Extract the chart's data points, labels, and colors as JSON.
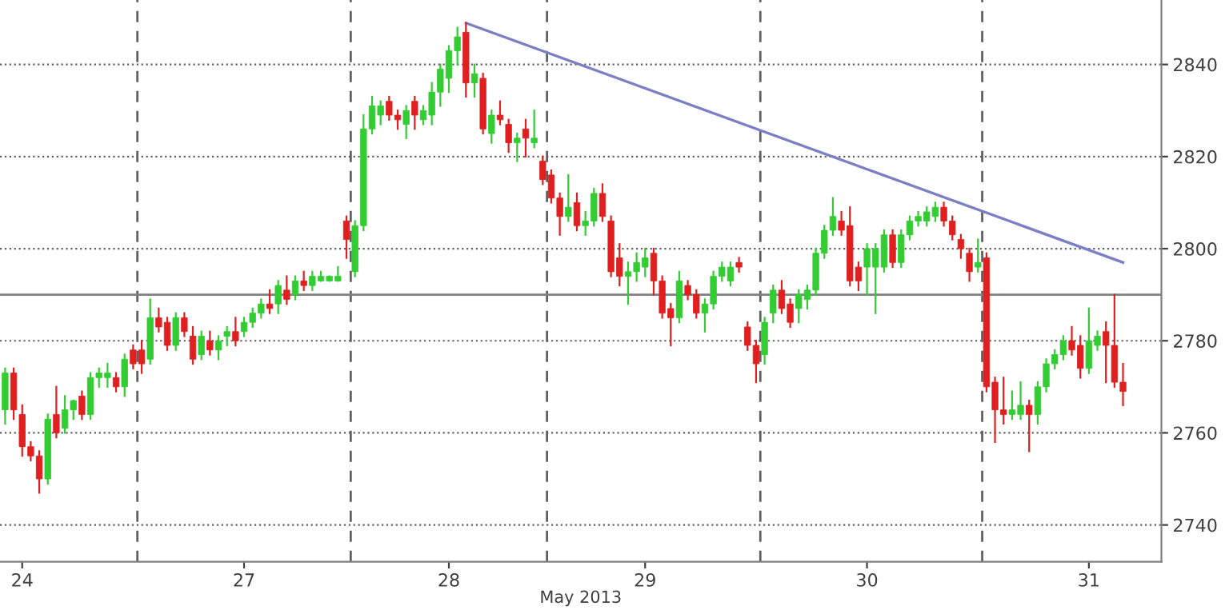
{
  "chart_data": {
    "type": "candlestick",
    "xlabel": "May 2013",
    "categories": [
      null,
      null,
      "24",
      null,
      null,
      null,
      null,
      null,
      null,
      null,
      null,
      null,
      null,
      null,
      null,
      null,
      null,
      null,
      null,
      null,
      null,
      null,
      null,
      null,
      null,
      null,
      null,
      null,
      "27",
      null,
      null,
      null,
      null,
      null,
      null,
      null,
      null,
      null,
      null,
      null,
      null,
      null,
      null,
      null,
      null,
      null,
      null,
      null,
      null,
      null,
      null,
      null,
      "28",
      null,
      null,
      null,
      null,
      null,
      null,
      null,
      null,
      null,
      null,
      null,
      null,
      null,
      null,
      null,
      null,
      null,
      null,
      null,
      null,
      null,
      null,
      "29",
      null,
      null,
      null,
      null,
      null,
      null,
      null,
      null,
      null,
      null,
      null,
      null,
      null,
      null,
      null,
      null,
      null,
      null,
      null,
      null,
      null,
      null,
      null,
      null,
      null,
      "30",
      null,
      null,
      null,
      null,
      null,
      null,
      null,
      null,
      null,
      null,
      null,
      null,
      null,
      null,
      null,
      null,
      null,
      null,
      null,
      null,
      null,
      null,
      null,
      null,
      null,
      "31",
      null,
      null,
      null,
      null
    ],
    "ylim": [
      2732,
      2854
    ],
    "yticks": [
      2740,
      2760,
      2780,
      2800,
      2820,
      2840
    ],
    "grid": "y",
    "ref_lines": [
      {
        "axis": "y",
        "value": 2790,
        "color": "#808080",
        "line_style": "solid"
      }
    ],
    "series": [
      {
        "type": "line",
        "color": "#7b7fc4",
        "values": [
          null,
          null,
          null,
          null,
          null,
          null,
          null,
          null,
          null,
          null,
          null,
          null,
          null,
          null,
          null,
          null,
          null,
          null,
          null,
          null,
          null,
          null,
          null,
          null,
          null,
          null,
          null,
          null,
          null,
          null,
          null,
          null,
          null,
          null,
          null,
          null,
          null,
          null,
          null,
          null,
          null,
          null,
          null,
          null,
          null,
          null,
          null,
          null,
          null,
          null,
          null,
          null,
          null,
          null,
          2849,
          null,
          null,
          null,
          null,
          null,
          null,
          null,
          null,
          null,
          null,
          null,
          null,
          null,
          null,
          null,
          null,
          null,
          null,
          null,
          null,
          null,
          null,
          null,
          null,
          null,
          null,
          null,
          null,
          null,
          null,
          null,
          null,
          null,
          null,
          null,
          null,
          null,
          null,
          null,
          null,
          null,
          null,
          null,
          null,
          null,
          null,
          null,
          null,
          null,
          null,
          null,
          null,
          null,
          null,
          null,
          null,
          null,
          null,
          null,
          null,
          null,
          null,
          null,
          null,
          null,
          null,
          null,
          null,
          null,
          null,
          null,
          null,
          null,
          null,
          null,
          null,
          2797
        ]
      },
      {
        "ohlc": [
          [
            2765,
            2774,
            2762,
            2773
          ],
          [
            2773,
            2774,
            2763,
            2765
          ],
          [
            2764,
            2766,
            2755,
            2757
          ],
          [
            2757,
            2758,
            2754,
            2755
          ],
          [
            2755,
            2756,
            2747,
            2750
          ],
          [
            2750,
            2764,
            2749,
            2763
          ],
          [
            2764,
            2770,
            2759,
            2760
          ],
          [
            2761,
            2768,
            2760,
            2765
          ],
          [
            2765,
            2767,
            2763,
            2767
          ],
          [
            2768,
            2769,
            2763,
            2764
          ],
          [
            2764,
            2773,
            2763,
            2772
          ],
          [
            2772,
            2774,
            2770,
            2773
          ],
          [
            2772,
            2775,
            2770,
            2773
          ],
          [
            2772,
            2773,
            2769,
            2770
          ],
          [
            2770,
            2777,
            2768,
            2776
          ],
          [
            2778,
            2779,
            2774,
            2775
          ],
          [
            2778,
            2780,
            2773,
            2775
          ],
          [
            2776,
            2789,
            2775,
            2785
          ],
          [
            2785,
            2787,
            2782,
            2783
          ],
          [
            2784,
            2785,
            2778,
            2779
          ],
          [
            2779,
            2786,
            2778,
            2785
          ],
          [
            2785,
            2786,
            2781,
            2782
          ],
          [
            2781,
            2783,
            2775,
            2776
          ],
          [
            2777,
            2782,
            2776,
            2781
          ],
          [
            2780,
            2782,
            2777,
            2778
          ],
          [
            2778,
            2781,
            2776,
            2780
          ],
          [
            2781,
            2783,
            2779,
            2782
          ],
          [
            2782,
            2785,
            2779,
            2780
          ],
          [
            2782,
            2785,
            2781,
            2784
          ],
          [
            2784,
            2787,
            2783,
            2786
          ],
          [
            2786,
            2789,
            2785,
            2788
          ],
          [
            2788,
            2791,
            2786,
            2787
          ],
          [
            2788,
            2793,
            2786,
            2792
          ],
          [
            2791,
            2794,
            2788,
            2789
          ],
          [
            2790,
            2794,
            2789,
            2793
          ],
          [
            2793,
            2795,
            2791,
            2792
          ],
          [
            2792,
            2795,
            2791,
            2794
          ],
          [
            2793,
            2795,
            2793,
            2794
          ],
          [
            2793,
            2794,
            2793,
            2794
          ],
          [
            2793,
            2796,
            2793,
            2794
          ],
          [
            2806,
            2807,
            2798,
            2802
          ],
          [
            2795,
            2806,
            2794,
            2805
          ],
          [
            2805,
            2829,
            2804,
            2826
          ],
          [
            2826,
            2833,
            2825,
            2831
          ],
          [
            2829,
            2832,
            2827,
            2831
          ],
          [
            2832,
            2833,
            2828,
            2829
          ],
          [
            2829,
            2830,
            2826,
            2828
          ],
          [
            2827,
            2831,
            2824,
            2830
          ],
          [
            2832,
            2833,
            2826,
            2829
          ],
          [
            2828,
            2831,
            2827,
            2830
          ],
          [
            2829,
            2836,
            2827,
            2834
          ],
          [
            2834,
            2840,
            2831,
            2839
          ],
          [
            2837,
            2844,
            2834,
            2843
          ],
          [
            2843,
            2848,
            2840,
            2846
          ],
          [
            2847,
            2849,
            2833,
            2836
          ],
          [
            2836,
            2840,
            2833,
            2838
          ],
          [
            2837,
            2838,
            2825,
            2826
          ],
          [
            2825,
            2830,
            2823,
            2829
          ],
          [
            2829,
            2832,
            2827,
            2828
          ],
          [
            2827,
            2828,
            2821,
            2823
          ],
          [
            2823,
            2825,
            2819,
            2824
          ],
          [
            2826,
            2828,
            2820,
            2824
          ],
          [
            2823,
            2830,
            2822,
            2824
          ],
          [
            2819,
            2820,
            2814,
            2815
          ],
          [
            2816,
            2817,
            2810,
            2811
          ],
          [
            2811,
            2812,
            2803,
            2807
          ],
          [
            2807,
            2816,
            2806,
            2809
          ],
          [
            2810,
            2812,
            2804,
            2805
          ],
          [
            2805,
            2808,
            2803,
            2806
          ],
          [
            2806,
            2813,
            2805,
            2812
          ],
          [
            2812,
            2814,
            2806,
            2807
          ],
          [
            2806,
            2807,
            2794,
            2795
          ],
          [
            2798,
            2801,
            2792,
            2794
          ],
          [
            2794,
            2797,
            2788,
            2795
          ],
          [
            2795,
            2799,
            2793,
            2797
          ],
          [
            2796,
            2800,
            2794,
            2798
          ],
          [
            2799,
            2800,
            2790,
            2793
          ],
          [
            2793,
            2794,
            2785,
            2786
          ],
          [
            2787,
            2788,
            2779,
            2785
          ],
          [
            2785,
            2795,
            2784,
            2793
          ],
          [
            2792,
            2793,
            2789,
            2790
          ],
          [
            2790,
            2791,
            2785,
            2786
          ],
          [
            2786,
            2789,
            2782,
            2788
          ],
          [
            2788,
            2795,
            2787,
            2794
          ],
          [
            2794,
            2797,
            2793,
            2796
          ],
          [
            2793,
            2797,
            2792,
            2796
          ],
          [
            2797,
            2798,
            2795,
            2796
          ],
          [
            2783,
            2784,
            2778,
            2779
          ],
          [
            2779,
            2780,
            2771,
            2775
          ],
          [
            2777,
            2785,
            2775,
            2784
          ],
          [
            2786,
            2792,
            2784,
            2791
          ],
          [
            2791,
            2793,
            2786,
            2787
          ],
          [
            2788,
            2789,
            2783,
            2784
          ],
          [
            2787,
            2791,
            2784,
            2790
          ],
          [
            2789,
            2792,
            2787,
            2791
          ],
          [
            2791,
            2800,
            2790,
            2799
          ],
          [
            2799,
            2805,
            2798,
            2804
          ],
          [
            2804,
            2811,
            2803,
            2807
          ],
          [
            2806,
            2808,
            2803,
            2804
          ],
          [
            2805,
            2809,
            2792,
            2793
          ],
          [
            2796,
            2797,
            2791,
            2793
          ],
          [
            2796,
            2801,
            2790,
            2800
          ],
          [
            2796,
            2801,
            2786,
            2800
          ],
          [
            2796,
            2804,
            2795,
            2803
          ],
          [
            2803,
            2804,
            2796,
            2797
          ],
          [
            2797,
            2804,
            2796,
            2803
          ],
          [
            2803,
            2807,
            2802,
            2806
          ],
          [
            2806,
            2808,
            2805,
            2807
          ],
          [
            2806,
            2809,
            2805,
            2808
          ],
          [
            2807,
            2810,
            2806,
            2809
          ],
          [
            2809,
            2810,
            2805,
            2806
          ],
          [
            2806,
            2807,
            2802,
            2803
          ],
          [
            2802,
            2803,
            2798,
            2800
          ],
          [
            2799,
            2800,
            2793,
            2795
          ],
          [
            2796,
            2802,
            2795,
            2797
          ],
          [
            2798,
            2799,
            2769,
            2770
          ],
          [
            2771,
            2772,
            2758,
            2765
          ],
          [
            2765,
            2772,
            2762,
            2764
          ],
          [
            2764,
            2769,
            2763,
            2765
          ],
          [
            2764,
            2771,
            2763,
            2766
          ],
          [
            2766,
            2767,
            2756,
            2764
          ],
          [
            2764,
            2771,
            2762,
            2770
          ],
          [
            2770,
            2776,
            2769,
            2775
          ],
          [
            2775,
            2778,
            2774,
            2777
          ],
          [
            2777,
            2781,
            2776,
            2780
          ],
          [
            2780,
            2783,
            2777,
            2778
          ],
          [
            2779,
            2781,
            2772,
            2774
          ],
          [
            2774,
            2787,
            2773,
            2780
          ],
          [
            2779,
            2782,
            2778,
            2781
          ],
          [
            2782,
            2784,
            2771,
            2779
          ],
          [
            2779,
            2790,
            2770,
            2771
          ],
          [
            2771,
            2775,
            2766,
            2769
          ]
        ],
        "colors": [
          "#33cc33",
          "#e02020",
          "#e02020",
          "#e02020",
          "#e02020",
          "#33cc33",
          "#e02020",
          "#33cc33",
          "#33cc33",
          "#e02020",
          "#33cc33",
          "#33cc33",
          "#33cc33",
          "#e02020",
          "#33cc33",
          "#e02020",
          "#e02020",
          "#33cc33",
          "#e02020",
          "#e02020",
          "#33cc33",
          "#e02020",
          "#e02020",
          "#33cc33",
          "#e02020",
          "#33cc33",
          "#33cc33",
          "#e02020",
          "#33cc33",
          "#33cc33",
          "#33cc33",
          "#e02020",
          "#33cc33",
          "#e02020",
          "#33cc33",
          "#e02020",
          "#33cc33",
          "#33cc33",
          "#33cc33",
          "#33cc33",
          "#e02020",
          "#33cc33",
          "#33cc33",
          "#33cc33",
          "#33cc33",
          "#e02020",
          "#e02020",
          "#33cc33",
          "#e02020",
          "#33cc33",
          "#33cc33",
          "#33cc33",
          "#33cc33",
          "#33cc33",
          "#e02020",
          "#33cc33",
          "#e02020",
          "#33cc33",
          "#e02020",
          "#e02020",
          "#33cc33",
          "#e02020",
          "#33cc33",
          "#e02020",
          "#e02020",
          "#e02020",
          "#33cc33",
          "#e02020",
          "#33cc33",
          "#33cc33",
          "#e02020",
          "#e02020",
          "#e02020",
          "#33cc33",
          "#33cc33",
          "#33cc33",
          "#e02020",
          "#e02020",
          "#e02020",
          "#33cc33",
          "#e02020",
          "#e02020",
          "#33cc33",
          "#33cc33",
          "#33cc33",
          "#33cc33",
          "#e02020",
          "#e02020",
          "#e02020",
          "#33cc33",
          "#33cc33",
          "#e02020",
          "#e02020",
          "#33cc33",
          "#33cc33",
          "#33cc33",
          "#33cc33",
          "#33cc33",
          "#e02020",
          "#e02020",
          "#e02020",
          "#33cc33",
          "#33cc33",
          "#33cc33",
          "#e02020",
          "#33cc33",
          "#33cc33",
          "#33cc33",
          "#33cc33",
          "#33cc33",
          "#e02020",
          "#e02020",
          "#e02020",
          "#e02020",
          "#33cc33",
          "#e02020",
          "#e02020",
          "#e02020",
          "#33cc33",
          "#33cc33",
          "#e02020",
          "#33cc33",
          "#33cc33",
          "#33cc33",
          "#33cc33",
          "#e02020",
          "#e02020",
          "#33cc33",
          "#33cc33",
          "#e02020",
          "#e02020",
          "#e02020"
        ]
      }
    ]
  }
}
